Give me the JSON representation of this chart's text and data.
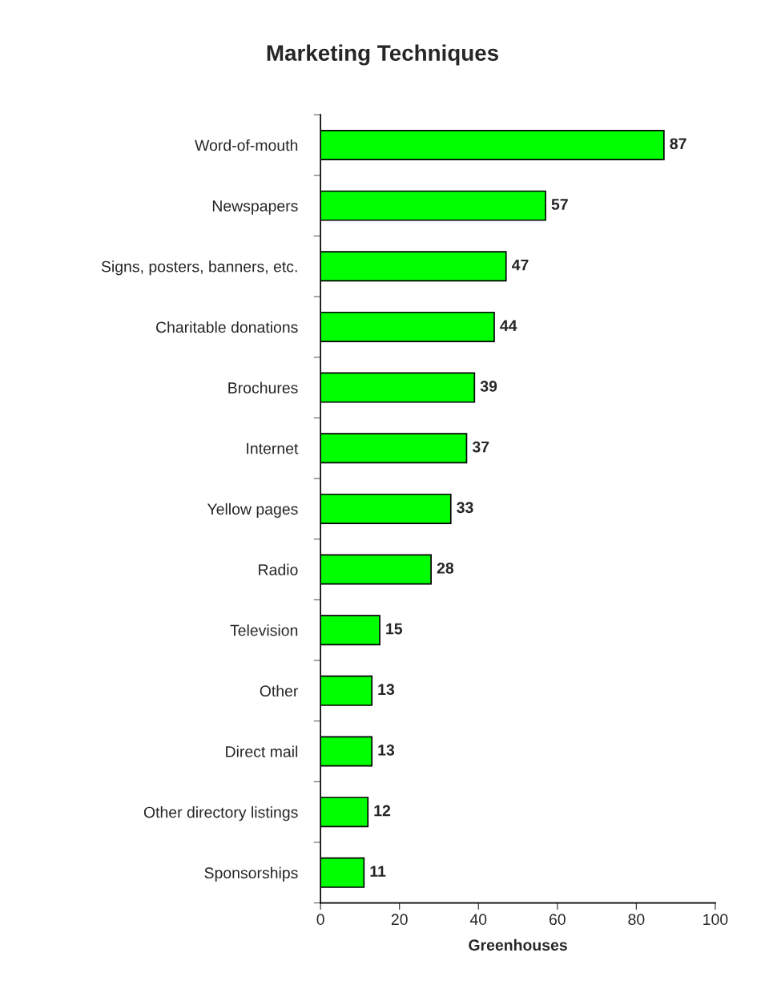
{
  "chart_data": {
    "type": "bar",
    "orientation": "horizontal",
    "title": "Marketing Techniques",
    "xlabel": "Greenhouses",
    "categories": [
      "Word-of-mouth",
      "Newspapers",
      "Signs, posters, banners, etc.",
      "Charitable donations",
      "Brochures",
      "Internet",
      "Yellow pages",
      "Radio",
      "Television",
      "Other",
      "Direct mail",
      "Other directory listings",
      "Sponsorships"
    ],
    "values": [
      87,
      57,
      47,
      44,
      39,
      37,
      33,
      28,
      15,
      13,
      13,
      12,
      11
    ],
    "color": "#00ff00",
    "xlim": [
      0,
      100
    ],
    "xticks": [
      0,
      20,
      40,
      60,
      80,
      100
    ],
    "grid": false,
    "data_labels": true
  }
}
